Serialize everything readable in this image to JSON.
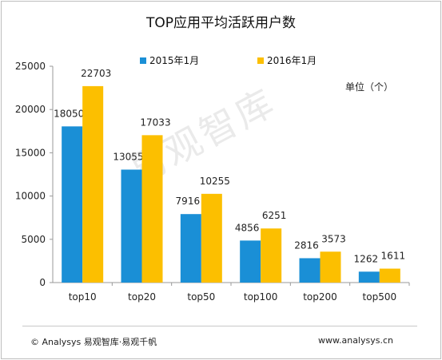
{
  "chart_data": {
    "type": "bar",
    "title": "TOP应用平均活跃用户数",
    "unit_label": "单位（个）",
    "categories": [
      "top10",
      "top20",
      "top50",
      "top100",
      "top200",
      "top500"
    ],
    "series": [
      {
        "name": "2015年1月",
        "color": "#1a8fd6",
        "values": [
          18050,
          13055,
          7916,
          4856,
          2816,
          1262
        ]
      },
      {
        "name": "2016年1月",
        "color": "#fcbf00",
        "values": [
          22703,
          17033,
          10255,
          6251,
          3573,
          1611
        ]
      }
    ],
    "yticks": [
      "0",
      "5000",
      "10000",
      "15000",
      "20000",
      "25000"
    ],
    "ylim": [
      0,
      25000
    ],
    "grid": false,
    "legend_position": "top"
  },
  "watermark": "易观智库",
  "footer": {
    "left": "© Analysys 易观智库·易观千帆",
    "right": "www.analysys.cn"
  }
}
